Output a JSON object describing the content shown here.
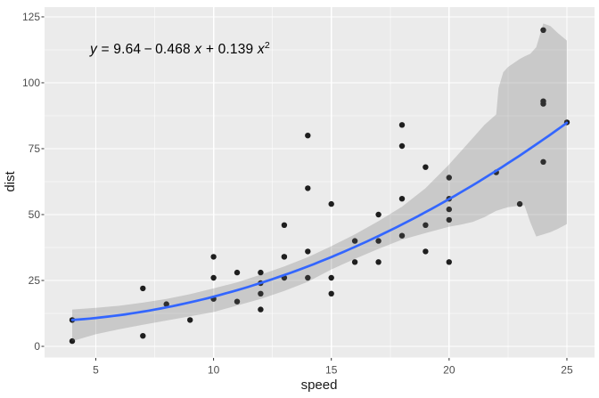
{
  "chart_data": {
    "type": "scatter",
    "title": "",
    "xlabel": "speed",
    "ylabel": "dist",
    "x_ticks": [
      "5",
      "10",
      "15",
      "20",
      "25"
    ],
    "x_tick_values": [
      5,
      10,
      15,
      20,
      25
    ],
    "x_minor_values": [
      7.5,
      12.5,
      17.5,
      22.5
    ],
    "y_ticks": [
      "0",
      "25",
      "50",
      "75",
      "100",
      "125"
    ],
    "y_tick_values": [
      0,
      25,
      50,
      75,
      100,
      125
    ],
    "y_minor_values": [
      12.5,
      37.5,
      62.5,
      87.5,
      112.5
    ],
    "xlim": [
      2.826,
      26.174
    ],
    "ylim": [
      -4.22,
      128.7
    ],
    "grid": true,
    "legend_position": "none",
    "equation_parts": {
      "p1": "y",
      "p2": " = 9.64 − 0.468 ",
      "p3": "x",
      "p4": " + 0.139 ",
      "p5": "x",
      "p6": "2"
    },
    "points": [
      [
        4,
        2
      ],
      [
        4,
        10
      ],
      [
        7,
        4
      ],
      [
        7,
        22
      ],
      [
        8,
        16
      ],
      [
        9,
        10
      ],
      [
        10,
        18
      ],
      [
        10,
        26
      ],
      [
        10,
        34
      ],
      [
        11,
        17
      ],
      [
        11,
        28
      ],
      [
        12,
        14
      ],
      [
        12,
        20
      ],
      [
        12,
        24
      ],
      [
        12,
        28
      ],
      [
        13,
        26
      ],
      [
        13,
        34
      ],
      [
        13,
        34
      ],
      [
        13,
        46
      ],
      [
        14,
        26
      ],
      [
        14,
        36
      ],
      [
        14,
        60
      ],
      [
        14,
        80
      ],
      [
        15,
        20
      ],
      [
        15,
        26
      ],
      [
        15,
        54
      ],
      [
        16,
        32
      ],
      [
        16,
        40
      ],
      [
        17,
        32
      ],
      [
        17,
        40
      ],
      [
        17,
        50
      ],
      [
        18,
        42
      ],
      [
        18,
        56
      ],
      [
        18,
        76
      ],
      [
        18,
        84
      ],
      [
        19,
        36
      ],
      [
        19,
        46
      ],
      [
        19,
        68
      ],
      [
        20,
        32
      ],
      [
        20,
        48
      ],
      [
        20,
        52
      ],
      [
        20,
        56
      ],
      [
        20,
        64
      ],
      [
        22,
        66
      ],
      [
        23,
        54
      ],
      [
        24,
        70
      ],
      [
        24,
        92
      ],
      [
        24,
        93
      ],
      [
        24,
        120
      ],
      [
        25,
        85
      ]
    ],
    "smooth_line": {
      "model": "quadratic",
      "coefficients": {
        "intercept": 9.64,
        "x": -0.468,
        "x2": 0.139
      },
      "x_start": 4,
      "x_end": 25
    },
    "confidence_band": {
      "x": [
        4,
        5,
        6,
        7,
        8,
        9,
        10,
        11,
        12,
        13,
        14,
        15,
        16,
        17,
        18,
        19,
        20,
        20.5,
        21,
        21.5,
        22,
        22.1,
        22.3,
        22.5,
        23,
        23.2,
        23.45,
        23.7,
        24,
        24.3,
        24.6,
        25
      ],
      "upper": [
        14,
        14.6,
        15.4,
        16.6,
        18,
        19.8,
        22,
        24.3,
        27.2,
        30.3,
        33.8,
        38,
        42.5,
        47.5,
        53,
        60,
        69,
        74,
        79,
        84,
        88,
        98,
        104,
        106,
        109,
        110,
        111,
        113.5,
        122.5,
        121.5,
        119,
        116
      ],
      "lower": [
        2,
        4.6,
        6.5,
        8.2,
        9.8,
        11.4,
        13,
        15.5,
        18,
        21,
        24.5,
        29.2,
        33.2,
        37,
        40.5,
        43,
        45.4,
        46.2,
        47.2,
        49,
        51.4,
        51.7,
        52.3,
        52.8,
        53.4,
        53.5,
        47,
        41.7,
        42.5,
        43.3,
        44.5,
        46.4
      ]
    }
  },
  "style": {
    "background": "#FFFFFF",
    "panel_bg": "#EBEBEB",
    "grid_major": "#FFFFFF",
    "grid_minor": "rgba(255,255,255,0.55)",
    "band_fill": "rgba(101,101,101,0.25)",
    "line_color": "#3366FF",
    "point_color": "#1E1E1E",
    "tick_mark_color": "#333333",
    "tick_label_color": "#4D4D4D",
    "axis_title_color": "#1A1A1A",
    "equation_color": "#000000"
  }
}
